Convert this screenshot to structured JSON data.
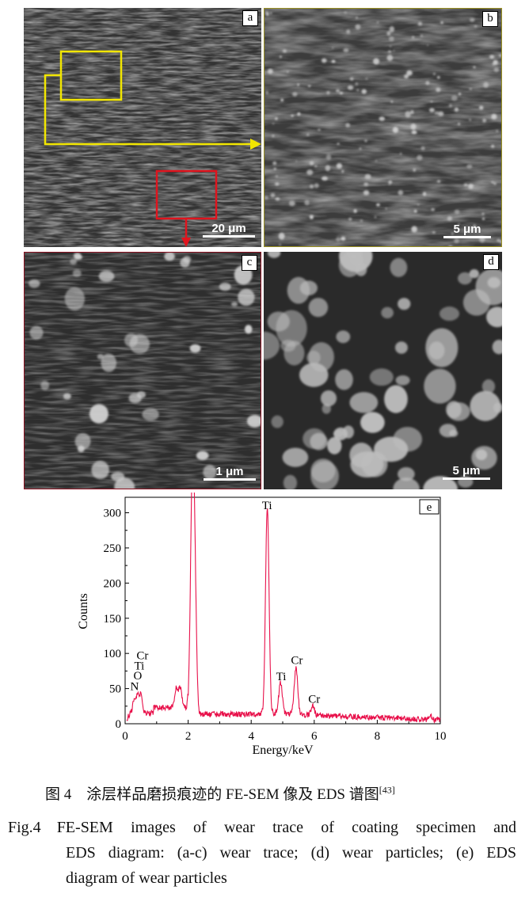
{
  "panels": [
    {
      "label": "a",
      "scale_bar": "20 μm"
    },
    {
      "label": "b",
      "scale_bar": "5 μm"
    },
    {
      "label": "c",
      "scale_bar": "1 μm"
    },
    {
      "label": "d",
      "scale_bar": "5 μm"
    }
  ],
  "colors": {
    "highlight_yellow": "#f2e600",
    "highlight_red": "#e0141e",
    "spectrum": "#e8104a"
  },
  "chart_data": {
    "type": "line",
    "panel_label": "e",
    "xlabel": "Energy/keV",
    "ylabel": "Counts",
    "xlim": [
      0,
      10
    ],
    "ylim": [
      0,
      322
    ],
    "xticks": [
      0,
      2,
      4,
      6,
      8,
      10
    ],
    "yticks": [
      0,
      50,
      100,
      150,
      200,
      250,
      300
    ],
    "grid": false,
    "background_level": 15,
    "peaks": [
      {
        "x": 0.28,
        "y": 30
      },
      {
        "x": 0.39,
        "y": 42
      },
      {
        "x": 0.5,
        "y": 40
      },
      {
        "x": 1.62,
        "y": 38
      },
      {
        "x": 1.75,
        "y": 38
      },
      {
        "x": 2.12,
        "y": 282
      },
      {
        "x": 2.2,
        "y": 225
      },
      {
        "x": 4.51,
        "y": 305
      },
      {
        "x": 4.93,
        "y": 57
      },
      {
        "x": 5.42,
        "y": 78
      },
      {
        "x": 5.95,
        "y": 25
      },
      {
        "x": 9.7,
        "y": 16
      }
    ],
    "annotations": [
      {
        "text": "Ti",
        "x": 4.5,
        "y": 305
      },
      {
        "text": "Cr",
        "x": 0.55,
        "y": 92
      },
      {
        "text": "Ti",
        "x": 0.45,
        "y": 77
      },
      {
        "text": "O",
        "x": 0.4,
        "y": 63
      },
      {
        "text": "N",
        "x": 0.3,
        "y": 48
      },
      {
        "text": "Ti",
        "x": 4.95,
        "y": 62
      },
      {
        "text": "Cr",
        "x": 5.45,
        "y": 85
      },
      {
        "text": "Cr",
        "x": 6.0,
        "y": 30
      }
    ]
  },
  "caption": {
    "zh_label": "图 4",
    "zh_text": "涂层样品磨损痕迹的 FE-SEM 像及 EDS 谱图",
    "zh_ref": "[43]",
    "en_label": "Fig.4",
    "en_line1": "FE-SEM images of wear trace of coating specimen and",
    "en_line2": "EDS diagram: (a-c) wear trace; (d) wear particles; (e) EDS",
    "en_line3": "diagram of wear particles"
  }
}
